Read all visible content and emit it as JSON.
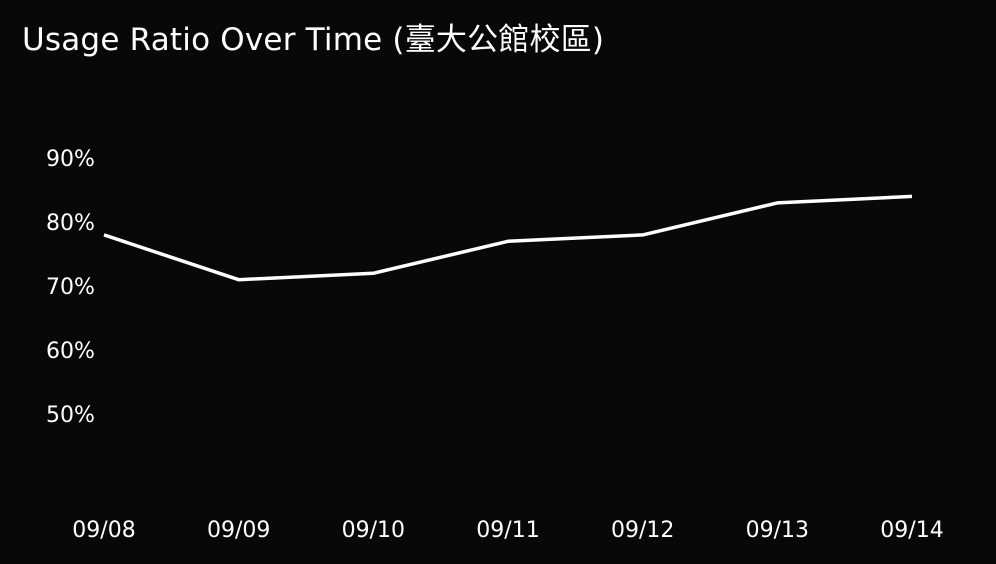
{
  "chart_data": {
    "type": "line",
    "title": "Usage Ratio Over Time (臺大公館校區)",
    "xlabel": "",
    "ylabel": "",
    "categories": [
      "09/08",
      "09/09",
      "09/10",
      "09/11",
      "09/12",
      "09/13",
      "09/14"
    ],
    "series": [
      {
        "values": [
          78,
          71,
          72,
          77,
          78,
          83,
          84
        ]
      }
    ],
    "y_ticks": [
      "50%",
      "60%",
      "70%",
      "80%",
      "90%"
    ],
    "y_tick_values": [
      50,
      60,
      70,
      80,
      90
    ],
    "ylim": [
      40.5,
      97.5
    ],
    "grid": false,
    "legend": "none"
  },
  "colors": {
    "background": "#080808",
    "line": "#ffffff",
    "text": "#ffffff"
  }
}
